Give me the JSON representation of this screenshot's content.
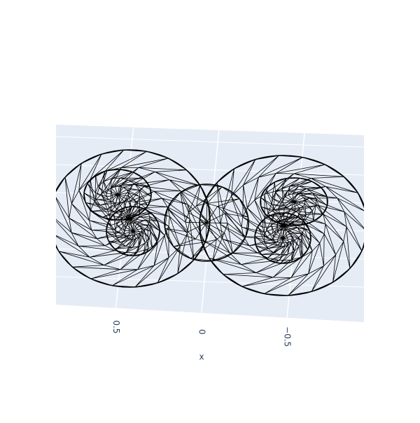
{
  "chart_data": {
    "type": "mesh3d",
    "xaxis_title": "x",
    "xlim": [
      0.85,
      -0.95
    ],
    "xticks": [
      0.5,
      0,
      {
        "value": -0.5,
        "label": "−0.5"
      }
    ],
    "grid": true,
    "color": "#000000",
    "background": "#e5ecf6"
  }
}
